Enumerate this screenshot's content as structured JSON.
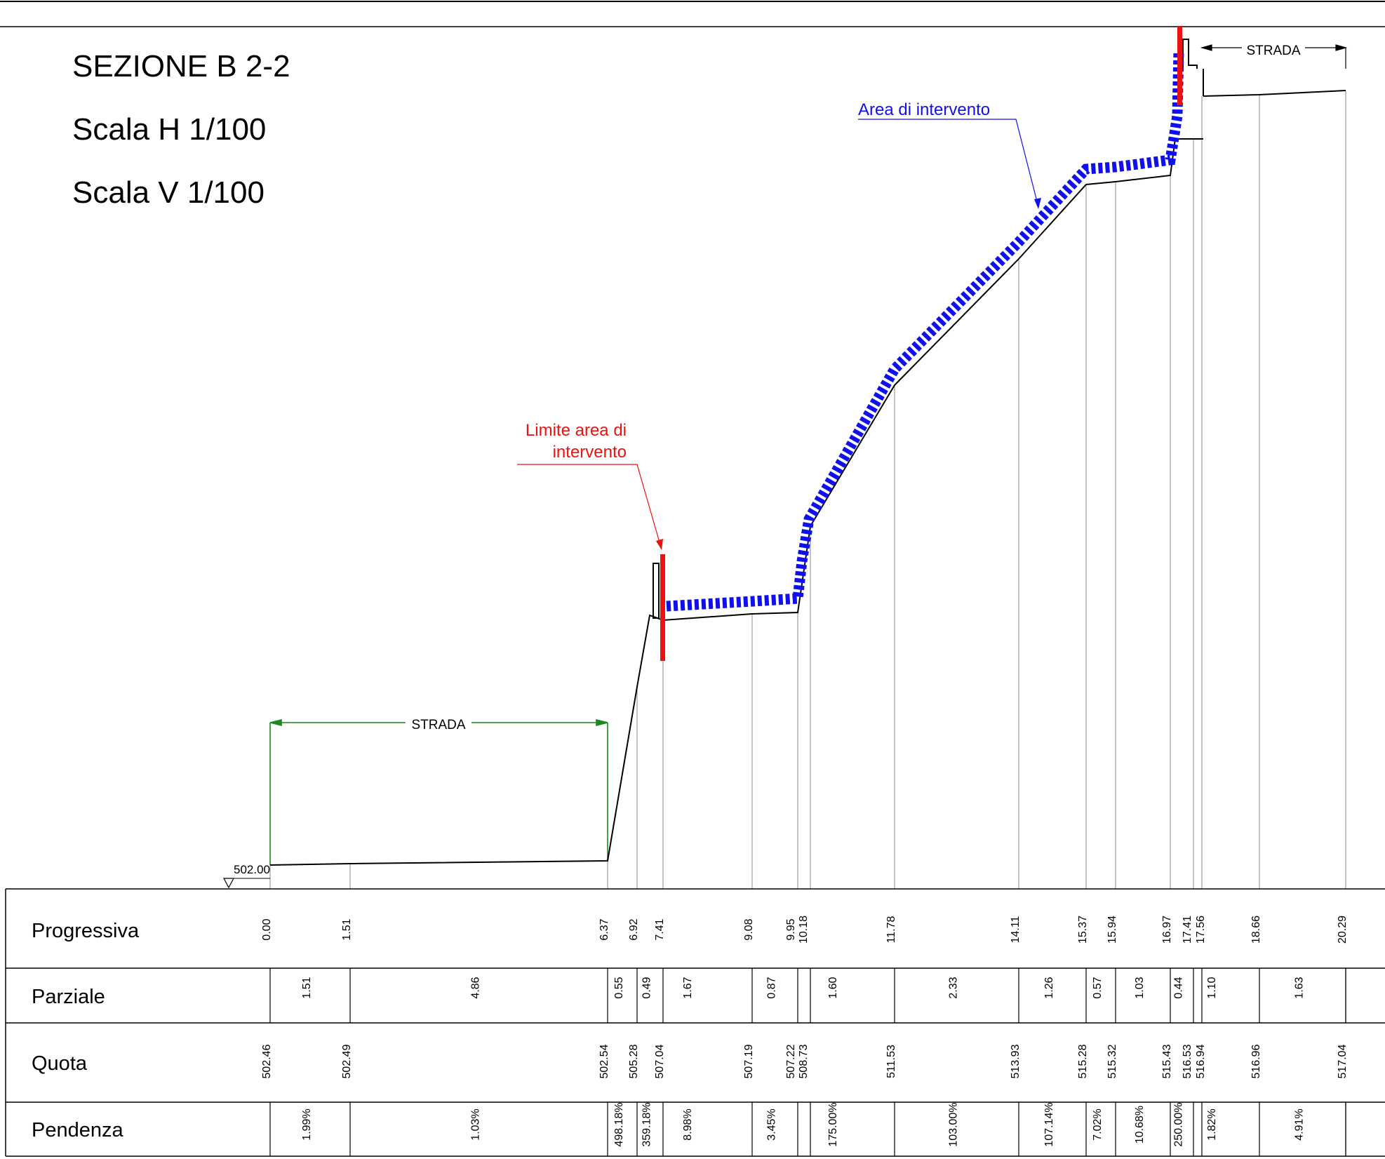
{
  "title": {
    "section": "SEZIONE B 2-2",
    "scale_h": "Scala H 1/100",
    "scale_v": "Scala V 1/100"
  },
  "annotations": {
    "area": "Area di intervento",
    "limit_line1": "Limite area di",
    "limit_line2": "intervento",
    "road_left": "STRADA",
    "road_right": "STRADA",
    "datum": "502.00"
  },
  "colors": {
    "profile": "#000000",
    "intervention_area": "#1010ee",
    "limit": "#ee1111",
    "road_dimension": "#1a8a1a",
    "grid": "#888888"
  },
  "table": {
    "rows": [
      "Progressiva",
      "Parziale",
      "Quota",
      "Pendenza"
    ],
    "progressiva": [
      "0.00",
      "1.51",
      "6.37",
      "6.92",
      "7.41",
      "9.08",
      "9.95",
      "10.18",
      "11.78",
      "14.11",
      "15.37",
      "15.94",
      "16.97",
      "17.41",
      "17.56",
      "18.66",
      "20.29"
    ],
    "parziale": [
      "1.51",
      "4.86",
      "0.55",
      "0.49",
      "1.67",
      "0.87",
      "",
      "1.60",
      "2.33",
      "1.26",
      "0.57",
      "1.03",
      "0.44",
      "",
      "1.10",
      "1.63"
    ],
    "quota": [
      "502.46",
      "502.49",
      "502.54",
      "505.28",
      "507.04",
      "507.19",
      "507.22",
      "508.73",
      "511.53",
      "513.93",
      "515.28",
      "515.32",
      "515.43",
      "516.53",
      "516.94",
      "516.96",
      "517.04"
    ],
    "pendenza": [
      "1.99%",
      "1.03%",
      "498.18%",
      "359.18%",
      "8.98%",
      "3.45%",
      "",
      "175.00%",
      "103.00%",
      "107.14%",
      "7.02%",
      "10.68%",
      "250.00%",
      "",
      "1.82%",
      "4.91%"
    ]
  }
}
